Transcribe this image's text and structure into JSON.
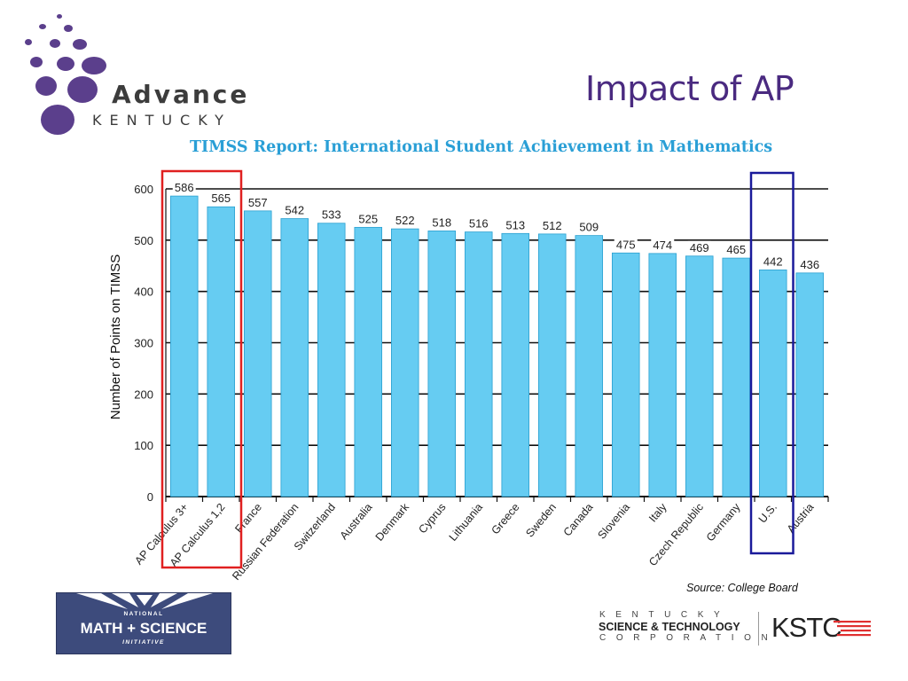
{
  "slide": {
    "title": "Impact of AP",
    "source_note": "Source: College Board"
  },
  "logos": {
    "advance_kentucky": {
      "name": "Advance",
      "sub": "KENTUCKY",
      "color": "#5b3f8c"
    },
    "nmsi": {
      "top": "NATIONAL",
      "main": "MATH + SCIENCE",
      "bottom": "INITIATIVE",
      "color": "#3d4b7c"
    },
    "kstc": {
      "line1": "KENTUCKY",
      "line2": "SCIENCE & TECHNOLOGY",
      "line3": "CORPORATION",
      "mark": "KSTC",
      "accent": "#e03030"
    }
  },
  "chart_data": {
    "type": "bar",
    "title": "TIMSS Report: International Student Achievement in Mathematics",
    "xlabel": "",
    "ylabel": "Number of Points on TIMSS",
    "ylim": [
      0,
      600
    ],
    "yticks": [
      0,
      100,
      200,
      300,
      400,
      500,
      600
    ],
    "grid": true,
    "categories": [
      "AP Calculus 3+",
      "AP Calculus 1,2",
      "France",
      "Russian Federation",
      "Switzerland",
      "Australia",
      "Denmark",
      "Cyprus",
      "Lithuania",
      "Greece",
      "Sweden",
      "Canada",
      "Slovenia",
      "Italy",
      "Czech Republic",
      "Germany",
      "U.S.",
      "Austria"
    ],
    "values": [
      586,
      565,
      557,
      542,
      533,
      525,
      522,
      518,
      516,
      513,
      512,
      509,
      475,
      474,
      469,
      465,
      442,
      436
    ],
    "bar_color": "#66ccf2",
    "highlights": [
      {
        "categories": [
          "AP Calculus 3+",
          "AP Calculus 1,2"
        ],
        "color": "#e02020"
      },
      {
        "categories": [
          "U.S."
        ],
        "color": "#1a1a9a"
      }
    ]
  }
}
